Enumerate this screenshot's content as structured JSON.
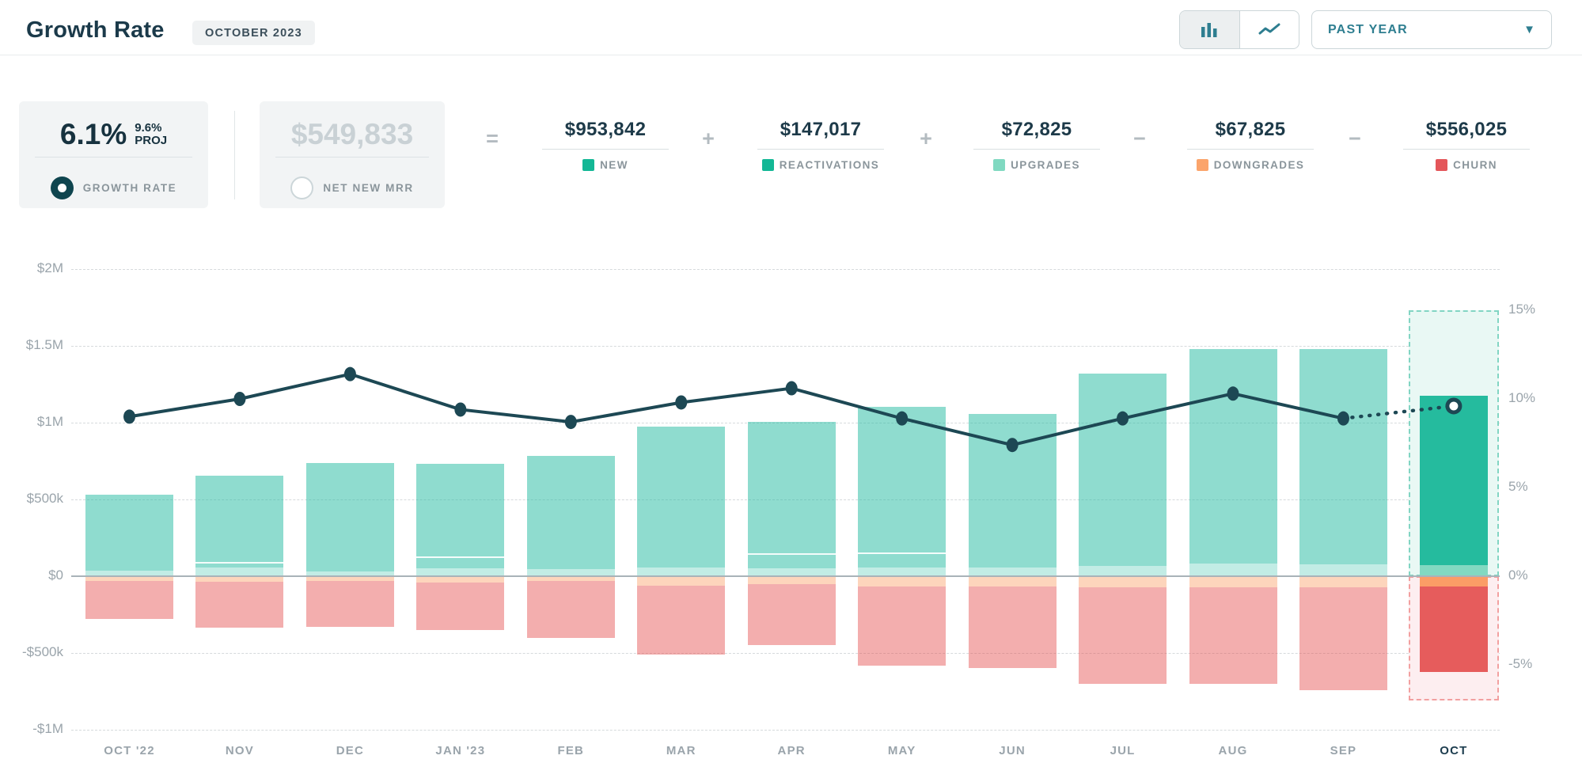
{
  "header": {
    "title": "Growth Rate",
    "period_badge": "OCTOBER 2023",
    "range_selector": "PAST YEAR",
    "chart_type_options": [
      "bar-chart",
      "line-chart"
    ],
    "chart_type_selected": "bar-chart"
  },
  "metrics": {
    "growth_rate": {
      "value": "6.1%",
      "projection_value": "9.6%",
      "projection_label": "PROJ",
      "label": "GROWTH RATE",
      "selected": true
    },
    "net_new_mrr": {
      "value": "$549,833",
      "label": "NET NEW MRR",
      "selected": false
    },
    "equation": [
      {
        "op": "=",
        "value": "$953,842",
        "label": "NEW",
        "color": "#13b795"
      },
      {
        "op": "+",
        "value": "$147,017",
        "label": "REACTIVATIONS",
        "color": "#13b795"
      },
      {
        "op": "+",
        "value": "$72,825",
        "label": "UPGRADES",
        "color": "#80d9c1"
      },
      {
        "op": "−",
        "value": "$67,825",
        "label": "DOWNGRADES",
        "color": "#fba46b"
      },
      {
        "op": "−",
        "value": "$556,025",
        "label": "CHURN",
        "color": "#e4565a"
      }
    ]
  },
  "chart_data": {
    "type": "bar",
    "subtype": "stacked MRR movement bars (left $ axis) with growth-rate line overlay (right % axis)",
    "title": "Growth Rate — Past Year",
    "categories": [
      "OCT '22",
      "NOV",
      "DEC",
      "JAN '23",
      "FEB",
      "MAR",
      "APR",
      "MAY",
      "JUN",
      "JUL",
      "AUG",
      "SEP",
      "OCT"
    ],
    "series": [
      {
        "name": "positive_mrr_total_usd_k",
        "values": [
          530,
          655,
          737,
          732,
          785,
          975,
          1003,
          1103,
          1055,
          1320,
          1480,
          1480,
          1173.7
        ]
      },
      {
        "name": "upgrades_usd_k",
        "values": [
          38,
          55,
          30,
          50,
          45,
          55,
          50,
          58,
          58,
          68,
          80,
          75,
          72.8
        ]
      },
      {
        "name": "downgrades_usd_k",
        "values": [
          30,
          35,
          30,
          40,
          30,
          60,
          50,
          65,
          65,
          70,
          70,
          70,
          67.8
        ]
      },
      {
        "name": "churn_usd_k",
        "values": [
          250,
          300,
          300,
          310,
          370,
          450,
          400,
          515,
          535,
          630,
          630,
          670,
          556
        ]
      },
      {
        "name": "growth_rate_pct",
        "values": [
          9.0,
          10.0,
          11.4,
          9.4,
          8.7,
          9.8,
          10.6,
          8.9,
          7.4,
          8.9,
          10.3,
          8.9,
          9.6
        ]
      }
    ],
    "segment_dividers_usd_k": [
      null,
      93,
      null,
      128,
      null,
      null,
      150,
      155,
      null,
      null,
      null,
      null,
      null
    ],
    "projected_month_index": 12,
    "projection_box": {
      "top_pct": 15,
      "bottom_pct": -7
    },
    "left_axis": {
      "ticks": [
        {
          "label": "$2M",
          "k": 2000
        },
        {
          "label": "$1.5M",
          "k": 1500
        },
        {
          "label": "$1M",
          "k": 1000
        },
        {
          "label": "$500k",
          "k": 500
        },
        {
          "label": "$0",
          "k": 0
        },
        {
          "label": "-$500k",
          "k": -500
        },
        {
          "label": "-$1M",
          "k": -1000
        }
      ],
      "range_k": [
        -1000,
        2000
      ]
    },
    "right_axis": {
      "ticks": [
        {
          "label": "15%",
          "pct": 15
        },
        {
          "label": "10%",
          "pct": 10
        },
        {
          "label": "5%",
          "pct": 5
        },
        {
          "label": "0%",
          "pct": 0
        },
        {
          "label": "-5%",
          "pct": -5
        }
      ],
      "range_pct": [
        -7,
        15
      ]
    },
    "grid": true,
    "legend_position": "none",
    "colors": {
      "bar_past": "rgba(31,186,159,0.50)",
      "upgrades_past": "rgba(31,186,159,0.27)",
      "downgrades_past": "rgba(250,145,80,0.38)",
      "churn_past": "rgba(228,70,70,0.44)",
      "bar_current": "#25bb9e",
      "upgrades_current": "#82d9c1",
      "downgrades_current": "#fb9d66",
      "churn_current": "#e65c5c",
      "line": "#1d4854",
      "proj_box_pos_fill": "#e9f8f4",
      "proj_box_pos_border": "#82d5c3",
      "proj_box_neg_fill": "#fdeef0",
      "proj_box_neg_border": "#f2a0a0"
    }
  }
}
